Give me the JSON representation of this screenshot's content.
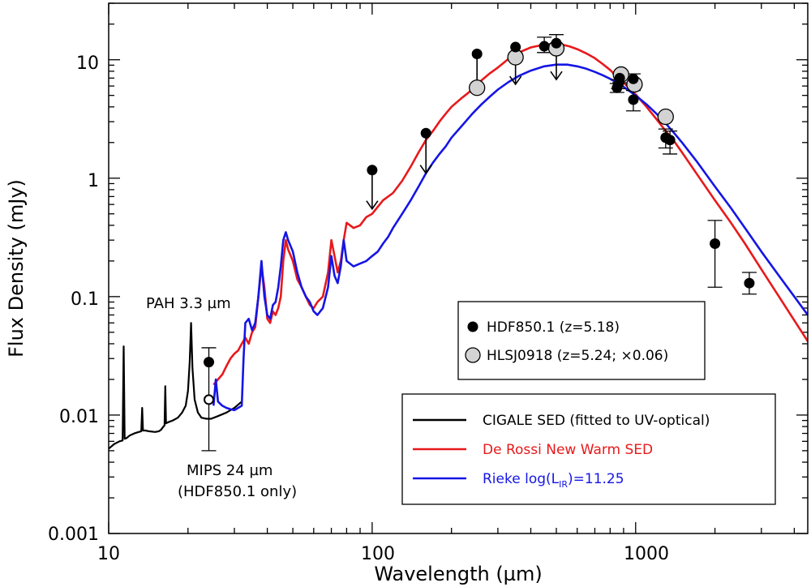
{
  "chart_data": {
    "type": "scatter",
    "title": "",
    "xlabel": "Wavelength (µm)",
    "ylabel": "Flux Density (mJy)",
    "xscale": "log",
    "yscale": "log",
    "xlim": [
      10,
      4500
    ],
    "ylim": [
      0.001,
      30
    ],
    "x_tick_labels": [
      "10",
      "100",
      "1000"
    ],
    "y_tick_labels": [
      "0.001",
      "0.01",
      "0.1",
      "1",
      "10"
    ],
    "annotations": {
      "pah": "PAH 3.3 µm",
      "mips_line1": "MIPS 24 µm",
      "mips_line2": "(HDF850.1 only)"
    },
    "colors": {
      "cigale": "#000000",
      "de_rossi": "#e8191b",
      "rieke": "#1515e6",
      "hlsj_fill": "#d3d3d3"
    },
    "points": [
      {
        "name": "HDF850.1 (z=5.18)",
        "marker": "filled-circle",
        "data": [
          {
            "x": 24,
            "y": 0.028,
            "err_lo": 0.023,
            "err_hi": 0.009
          },
          {
            "x": 100,
            "y": 1.17,
            "upper_limit": true,
            "arrow_to": 0.55
          },
          {
            "x": 160,
            "y": 2.4,
            "upper_limit": true,
            "arrow_to": 1.1
          },
          {
            "x": 250,
            "y": 11.2,
            "upper_limit": true,
            "arrow_to": 5.5
          },
          {
            "x": 350,
            "y": 12.8,
            "upper_limit": true,
            "arrow_to": 6.2
          },
          {
            "x": 450,
            "y": 13.0,
            "err_lo": 1.5,
            "err_hi": 2.5
          },
          {
            "x": 500,
            "y": 13.8,
            "err_lo": 1.5,
            "err_hi": 2.5
          },
          {
            "x": 850,
            "y": 5.8,
            "err_lo": 0.5,
            "err_hi": 0.5
          },
          {
            "x": 860,
            "y": 6.2,
            "err_lo": 0.5,
            "err_hi": 0.6
          },
          {
            "x": 870,
            "y": 7.0,
            "err_lo": 0.6,
            "err_hi": 0.6
          },
          {
            "x": 980,
            "y": 6.9,
            "err_lo": 0.7,
            "err_hi": 0.7
          },
          {
            "x": 980,
            "y": 4.6,
            "err_lo": 0.9,
            "err_hi": 0.9
          },
          {
            "x": 1300,
            "y": 2.2,
            "err_lo": 0.4,
            "err_hi": 0.4
          },
          {
            "x": 1350,
            "y": 2.1,
            "err_lo": 0.5,
            "err_hi": 0.4
          },
          {
            "x": 2000,
            "y": 0.28,
            "err_lo": 0.16,
            "err_hi": 0.16
          },
          {
            "x": 2700,
            "y": 0.13,
            "err_lo": 0.025,
            "err_hi": 0.03
          }
        ]
      },
      {
        "name": "HLSJ0918 (z=5.24; ×0.06)",
        "marker": "grey-circle",
        "data": [
          {
            "x": 250,
            "y": 5.8
          },
          {
            "x": 350,
            "y": 10.5
          },
          {
            "x": 500,
            "y": 12.5,
            "upper_limit": true,
            "arrow_to": 6.8
          },
          {
            "x": 880,
            "y": 7.5
          },
          {
            "x": 990,
            "y": 6.2
          },
          {
            "x": 1300,
            "y": 3.3
          }
        ]
      },
      {
        "name": "MIPS 24 open",
        "marker": "open-circle",
        "data": [
          {
            "x": 24,
            "y": 0.0135
          }
        ]
      }
    ],
    "series": [
      {
        "name": "CIGALE SED (fitted to UV-optical)",
        "color": "#000000",
        "x": [
          10,
          10.5,
          11,
          11.3,
          11.4,
          11.5,
          11.7,
          12,
          12.5,
          13,
          13.3,
          13.4,
          13.5,
          13.8,
          14.2,
          15,
          15.5,
          15.8,
          16.0,
          16.3,
          16.4,
          16.5,
          16.8,
          17.5,
          18.3,
          19.0,
          19.6,
          20.0,
          20.3,
          20.55,
          20.8,
          21.2,
          21.8,
          22.5,
          23.5,
          24.5,
          26,
          28,
          30,
          32
        ],
        "y": [
          0.0052,
          0.0057,
          0.006,
          0.0061,
          0.038,
          0.0063,
          0.0064,
          0.0067,
          0.007,
          0.0072,
          0.0073,
          0.0115,
          0.0074,
          0.0074,
          0.0073,
          0.0072,
          0.0073,
          0.0075,
          0.0078,
          0.0082,
          0.0175,
          0.0085,
          0.0087,
          0.009,
          0.0095,
          0.0105,
          0.012,
          0.016,
          0.028,
          0.06,
          0.025,
          0.0135,
          0.0105,
          0.0095,
          0.0093,
          0.0093,
          0.0098,
          0.0105,
          0.0115,
          0.013
        ]
      },
      {
        "name": "De Rossi New Warm SED",
        "color": "#e8191b",
        "x": [
          25,
          26,
          27,
          28,
          29,
          30,
          31,
          32,
          33,
          34,
          35,
          36,
          37,
          38,
          39,
          40,
          41,
          42,
          43,
          44,
          45,
          46,
          47,
          48,
          50,
          52,
          54,
          56,
          58,
          60,
          62,
          65,
          68,
          70,
          72,
          74,
          76,
          78,
          80,
          85,
          90,
          95,
          100,
          110,
          120,
          130,
          140,
          150,
          160,
          170,
          180,
          190,
          200,
          210,
          220,
          240,
          260,
          280,
          300,
          330,
          360,
          400,
          440,
          480,
          520,
          560,
          600,
          650,
          700,
          750,
          800,
          850,
          900,
          1000,
          1100,
          1200,
          1300,
          1400,
          1500,
          1700,
          2000,
          2300,
          2600,
          3000,
          3500,
          4000,
          4500
        ],
        "y": [
          0.018,
          0.02,
          0.022,
          0.026,
          0.03,
          0.033,
          0.035,
          0.04,
          0.045,
          0.04,
          0.05,
          0.055,
          0.1,
          0.18,
          0.12,
          0.065,
          0.06,
          0.075,
          0.07,
          0.08,
          0.1,
          0.2,
          0.3,
          0.25,
          0.2,
          0.14,
          0.12,
          0.1,
          0.085,
          0.08,
          0.09,
          0.1,
          0.16,
          0.3,
          0.22,
          0.16,
          0.2,
          0.3,
          0.42,
          0.38,
          0.4,
          0.47,
          0.5,
          0.65,
          0.75,
          0.95,
          1.25,
          1.65,
          2.1,
          2.5,
          3.0,
          3.5,
          4.0,
          4.4,
          4.8,
          5.6,
          6.7,
          7.7,
          8.6,
          10.2,
          11.5,
          12.7,
          13.3,
          13.6,
          13.5,
          13.0,
          12.3,
          11.3,
          10.3,
          9.2,
          8.2,
          7.2,
          6.4,
          5.1,
          4.0,
          3.15,
          2.5,
          2.05,
          1.65,
          1.1,
          0.65,
          0.42,
          0.28,
          0.17,
          0.1,
          0.063,
          0.042
        ]
      },
      {
        "name": "Rieke log(L_IR)=11.25",
        "color": "#1515e6",
        "x": [
          25,
          25.5,
          26,
          27,
          28,
          29,
          30,
          31,
          32,
          32.5,
          33,
          34,
          35,
          36,
          37,
          38,
          39,
          40,
          41,
          42,
          43,
          44,
          45,
          46,
          47,
          48,
          50,
          52,
          54,
          56,
          58,
          60,
          62,
          65,
          68,
          70,
          72,
          74,
          76,
          78,
          80,
          85,
          90,
          95,
          100,
          105,
          110,
          115,
          120,
          130,
          140,
          150,
          160,
          170,
          180,
          190,
          200,
          220,
          240,
          260,
          280,
          300,
          330,
          360,
          400,
          450,
          500,
          550,
          600,
          650,
          700,
          750,
          800,
          850,
          900,
          1000,
          1100,
          1200,
          1300,
          1400,
          1500,
          1700,
          2000,
          2300,
          2600,
          3000,
          3500,
          4000,
          4500
        ],
        "y": [
          0.012,
          0.02,
          0.013,
          0.012,
          0.0115,
          0.0112,
          0.011,
          0.0115,
          0.012,
          0.03,
          0.06,
          0.065,
          0.052,
          0.06,
          0.1,
          0.2,
          0.1,
          0.07,
          0.065,
          0.085,
          0.09,
          0.12,
          0.18,
          0.3,
          0.35,
          0.3,
          0.24,
          0.16,
          0.12,
          0.1,
          0.09,
          0.075,
          0.07,
          0.08,
          0.12,
          0.22,
          0.15,
          0.13,
          0.18,
          0.3,
          0.2,
          0.18,
          0.19,
          0.2,
          0.22,
          0.24,
          0.28,
          0.32,
          0.38,
          0.5,
          0.65,
          0.85,
          1.1,
          1.35,
          1.6,
          1.85,
          2.2,
          2.8,
          3.5,
          4.2,
          4.9,
          5.6,
          6.5,
          7.3,
          8.1,
          8.8,
          9.1,
          9.1,
          8.8,
          8.4,
          7.9,
          7.4,
          6.9,
          6.4,
          5.9,
          5.0,
          4.2,
          3.5,
          2.9,
          2.4,
          2.0,
          1.4,
          0.85,
          0.56,
          0.38,
          0.24,
          0.15,
          0.1,
          0.07
        ]
      }
    ],
    "legends": [
      {
        "placement": "middle-right",
        "entries": [
          {
            "label": "HDF850.1 (z=5.18)",
            "marker": "filled-circle",
            "color": "#000000"
          },
          {
            "label": "HLSJ0918 (z=5.24; ×0.06)",
            "marker": "grey-circle",
            "color": "#000000"
          }
        ]
      },
      {
        "placement": "lower-right",
        "entries": [
          {
            "label": "CIGALE SED (fitted to UV-optical)",
            "line_color": "#000000",
            "text_color": "#000000"
          },
          {
            "label": "De Rossi New Warm SED",
            "line_color": "#e8191b",
            "text_color": "#e8191b"
          },
          {
            "label": "Rieke log(L",
            "subscript": "IR",
            "suffix": ")=11.25",
            "line_color": "#1515e6",
            "text_color": "#1515e6"
          }
        ]
      }
    ]
  }
}
